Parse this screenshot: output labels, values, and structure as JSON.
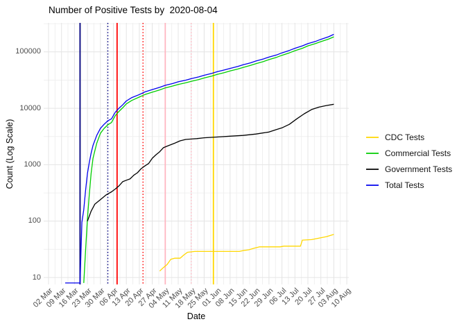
{
  "title": "Number of Positive Tests by  2020-08-04",
  "chart_data": {
    "type": "line",
    "title": "Number of Positive Tests by  2020-08-04",
    "xlabel": "Date",
    "ylabel": "Count (Log Scale)",
    "y_scale": "log10",
    "ylim": [
      7.5,
      320000
    ],
    "grid": "on",
    "legend_position": "right",
    "y_ticks": [
      {
        "value": 10,
        "label": "10"
      },
      {
        "value": 100,
        "label": "100"
      },
      {
        "value": 1000,
        "label": "1000"
      },
      {
        "value": 10000,
        "label": "10000"
      },
      {
        "value": 100000,
        "label": "100000"
      }
    ],
    "x_ticks": [
      "02 Mar",
      "09 Mar",
      "16 Mar",
      "23 Mar",
      "30 Mar",
      "06 Apr",
      "13 Apr",
      "20 Apr",
      "27 Apr",
      "04 May",
      "11 May",
      "18 May",
      "25 May",
      "01 Jun",
      "08 Jun",
      "15 Jun",
      "22 Jun",
      "29 Jun",
      "06 Jul",
      "13 Jul",
      "20 Jul",
      "27 Jul",
      "03 Aug",
      "10 Aug"
    ],
    "legend": {
      "entries": [
        {
          "label": "CDC Tests",
          "color": "#FFD700"
        },
        {
          "label": "Commercial Tests",
          "color": "#00CD00"
        },
        {
          "label": "Government Tests",
          "color": "#000000"
        },
        {
          "label": "Total Tests",
          "color": "#0000EE"
        }
      ]
    },
    "vlines": [
      {
        "date": "2020-03-19",
        "color": "#000080",
        "style": "solid"
      },
      {
        "date": "2020-04-03",
        "color": "#000080",
        "style": "dotted"
      },
      {
        "date": "2020-04-08",
        "color": "#FF0000",
        "style": "solid"
      },
      {
        "date": "2020-04-22",
        "color": "#FF0000",
        "style": "dotted"
      },
      {
        "date": "2020-05-04",
        "color": "#FFB6C1",
        "style": "solid"
      },
      {
        "date": "2020-05-18",
        "color": "#FFB6C1",
        "style": "dotted"
      },
      {
        "date": "2020-05-30",
        "color": "#FFD700",
        "style": "solid"
      }
    ],
    "series": [
      {
        "name": "Total Tests",
        "color": "#0000EE",
        "points": [
          [
            "2020-03-11",
            8
          ],
          [
            "2020-03-19",
            8
          ],
          [
            "2020-03-20",
            95
          ],
          [
            "2020-03-21",
            160
          ],
          [
            "2020-03-22",
            350
          ],
          [
            "2020-03-23",
            700
          ],
          [
            "2020-03-24",
            1100
          ],
          [
            "2020-03-25",
            1600
          ],
          [
            "2020-03-26",
            2200
          ],
          [
            "2020-03-28",
            3300
          ],
          [
            "2020-03-30",
            4400
          ],
          [
            "2020-04-01",
            5200
          ],
          [
            "2020-04-03",
            6000
          ],
          [
            "2020-04-05",
            6500
          ],
          [
            "2020-04-07",
            8500
          ],
          [
            "2020-04-09",
            10000
          ],
          [
            "2020-04-11",
            11500
          ],
          [
            "2020-04-13",
            13500
          ],
          [
            "2020-04-16",
            15500
          ],
          [
            "2020-04-20",
            17500
          ],
          [
            "2020-04-23",
            19500
          ],
          [
            "2020-04-27",
            21500
          ],
          [
            "2020-05-01",
            23500
          ],
          [
            "2020-05-04",
            25500
          ],
          [
            "2020-05-08",
            27500
          ],
          [
            "2020-05-11",
            29500
          ],
          [
            "2020-05-15",
            31500
          ],
          [
            "2020-05-18",
            33500
          ],
          [
            "2020-05-22",
            36000
          ],
          [
            "2020-05-25",
            38500
          ],
          [
            "2020-05-29",
            41500
          ],
          [
            "2020-06-01",
            44500
          ],
          [
            "2020-06-05",
            48000
          ],
          [
            "2020-06-08",
            51000
          ],
          [
            "2020-06-12",
            55000
          ],
          [
            "2020-06-15",
            59000
          ],
          [
            "2020-06-19",
            64000
          ],
          [
            "2020-06-22",
            69000
          ],
          [
            "2020-06-26",
            75000
          ],
          [
            "2020-06-29",
            81000
          ],
          [
            "2020-07-03",
            88000
          ],
          [
            "2020-07-06",
            96000
          ],
          [
            "2020-07-10",
            106000
          ],
          [
            "2020-07-13",
            116000
          ],
          [
            "2020-07-17",
            128000
          ],
          [
            "2020-07-20",
            140000
          ],
          [
            "2020-07-24",
            153000
          ],
          [
            "2020-07-27",
            167000
          ],
          [
            "2020-07-31",
            185000
          ],
          [
            "2020-08-03",
            205000
          ]
        ]
      },
      {
        "name": "Commercial Tests",
        "color": "#00CD00",
        "points": [
          [
            "2020-03-21",
            8
          ],
          [
            "2020-03-22",
            30
          ],
          [
            "2020-03-23",
            110
          ],
          [
            "2020-03-24",
            300
          ],
          [
            "2020-03-25",
            700
          ],
          [
            "2020-03-26",
            1300
          ],
          [
            "2020-03-28",
            2400
          ],
          [
            "2020-03-30",
            3600
          ],
          [
            "2020-04-01",
            4400
          ],
          [
            "2020-04-03",
            5100
          ],
          [
            "2020-04-05",
            5600
          ],
          [
            "2020-04-07",
            7400
          ],
          [
            "2020-04-09",
            8800
          ],
          [
            "2020-04-11",
            10200
          ],
          [
            "2020-04-13",
            12000
          ],
          [
            "2020-04-16",
            13800
          ],
          [
            "2020-04-20",
            15800
          ],
          [
            "2020-04-23",
            17500
          ],
          [
            "2020-04-27",
            19300
          ],
          [
            "2020-05-01",
            21200
          ],
          [
            "2020-05-04",
            23000
          ],
          [
            "2020-05-08",
            24800
          ],
          [
            "2020-05-11",
            26500
          ],
          [
            "2020-05-15",
            28300
          ],
          [
            "2020-05-18",
            30000
          ],
          [
            "2020-05-22",
            32200
          ],
          [
            "2020-05-25",
            34500
          ],
          [
            "2020-05-29",
            37200
          ],
          [
            "2020-06-01",
            40000
          ],
          [
            "2020-06-05",
            43000
          ],
          [
            "2020-06-08",
            46000
          ],
          [
            "2020-06-12",
            49500
          ],
          [
            "2020-06-15",
            53000
          ],
          [
            "2020-06-19",
            57500
          ],
          [
            "2020-06-22",
            62000
          ],
          [
            "2020-06-26",
            67500
          ],
          [
            "2020-06-29",
            73000
          ],
          [
            "2020-07-03",
            80000
          ],
          [
            "2020-07-06",
            87000
          ],
          [
            "2020-07-10",
            96000
          ],
          [
            "2020-07-13",
            105000
          ],
          [
            "2020-07-17",
            116000
          ],
          [
            "2020-07-20",
            128000
          ],
          [
            "2020-07-24",
            140000
          ],
          [
            "2020-07-27",
            152000
          ],
          [
            "2020-07-31",
            168000
          ],
          [
            "2020-08-03",
            185000
          ]
        ]
      },
      {
        "name": "Government Tests",
        "color": "#000000",
        "points": [
          [
            "2020-03-23",
            100
          ],
          [
            "2020-03-25",
            150
          ],
          [
            "2020-03-27",
            200
          ],
          [
            "2020-03-30",
            240
          ],
          [
            "2020-04-02",
            290
          ],
          [
            "2020-04-05",
            330
          ],
          [
            "2020-04-07",
            370
          ],
          [
            "2020-04-09",
            420
          ],
          [
            "2020-04-11",
            500
          ],
          [
            "2020-04-13",
            530
          ],
          [
            "2020-04-15",
            560
          ],
          [
            "2020-04-17",
            650
          ],
          [
            "2020-04-19",
            720
          ],
          [
            "2020-04-21",
            850
          ],
          [
            "2020-04-23",
            950
          ],
          [
            "2020-04-25",
            1050
          ],
          [
            "2020-04-27",
            1300
          ],
          [
            "2020-04-29",
            1500
          ],
          [
            "2020-05-01",
            1700
          ],
          [
            "2020-05-03",
            2000
          ],
          [
            "2020-05-06",
            2200
          ],
          [
            "2020-05-09",
            2400
          ],
          [
            "2020-05-12",
            2650
          ],
          [
            "2020-05-15",
            2800
          ],
          [
            "2020-05-18",
            2850
          ],
          [
            "2020-05-21",
            2900
          ],
          [
            "2020-05-25",
            3000
          ],
          [
            "2020-06-01",
            3100
          ],
          [
            "2020-06-08",
            3200
          ],
          [
            "2020-06-15",
            3300
          ],
          [
            "2020-06-22",
            3500
          ],
          [
            "2020-06-29",
            3800
          ],
          [
            "2020-07-03",
            4200
          ],
          [
            "2020-07-06",
            4500
          ],
          [
            "2020-07-10",
            5200
          ],
          [
            "2020-07-14",
            6500
          ],
          [
            "2020-07-18",
            8000
          ],
          [
            "2020-07-22",
            9500
          ],
          [
            "2020-07-26",
            10500
          ],
          [
            "2020-07-30",
            11200
          ],
          [
            "2020-08-03",
            11800
          ]
        ]
      },
      {
        "name": "CDC Tests",
        "color": "#FFD700",
        "points": [
          [
            "2020-05-01",
            13
          ],
          [
            "2020-05-03",
            15
          ],
          [
            "2020-05-05",
            17
          ],
          [
            "2020-05-07",
            21
          ],
          [
            "2020-05-09",
            22
          ],
          [
            "2020-05-12",
            22
          ],
          [
            "2020-05-14",
            25
          ],
          [
            "2020-05-16",
            28
          ],
          [
            "2020-05-20",
            29
          ],
          [
            "2020-06-13",
            29
          ],
          [
            "2020-06-15",
            30
          ],
          [
            "2020-06-18",
            31
          ],
          [
            "2020-06-21",
            33
          ],
          [
            "2020-06-24",
            35
          ],
          [
            "2020-07-05",
            35
          ],
          [
            "2020-07-07",
            36
          ],
          [
            "2020-07-16",
            36
          ],
          [
            "2020-07-17",
            46
          ],
          [
            "2020-07-22",
            47
          ],
          [
            "2020-07-26",
            50
          ],
          [
            "2020-07-30",
            53
          ],
          [
            "2020-08-03",
            58
          ]
        ]
      }
    ]
  }
}
